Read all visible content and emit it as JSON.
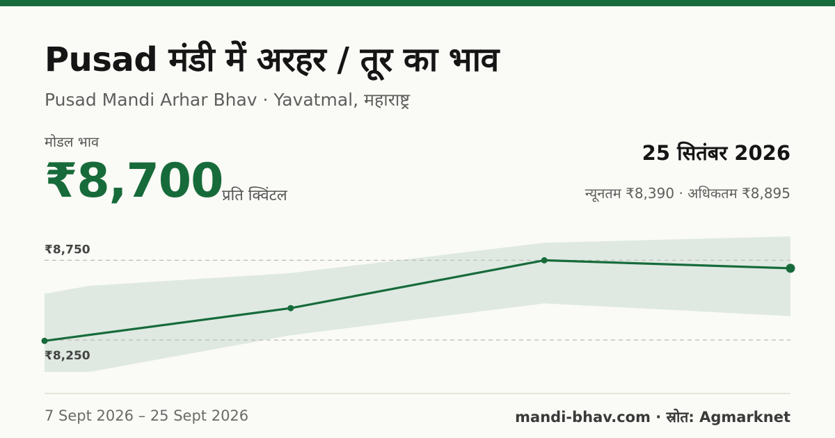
{
  "header": {
    "title": "Pusad मंडी में अरहर / तूर का भाव",
    "subtitle": "Pusad Mandi Arhar Bhav · Yavatmal, महाराष्ट्र"
  },
  "price": {
    "modal_label": "मोडल भाव",
    "modal_value": "₹8,700",
    "unit": "प्रति क्विंटल",
    "date": "25 सितंबर 2026",
    "min_label": "न्यूनतम",
    "min_value": "₹8,390",
    "separator": "·",
    "max_label": "अधिकतम",
    "max_value": "₹8,895"
  },
  "footer": {
    "date_range": "7 Sept 2026 – 25 Sept 2026",
    "source": "mandi-bhav.com · स्रोत: Agmarknet"
  },
  "colors": {
    "accent": "#176b3a",
    "band": "#dfe9e2",
    "grid": "#bdbdb6"
  },
  "chart_data": {
    "type": "line",
    "y_ticks": [
      {
        "value": 8750,
        "label": "₹8,750"
      },
      {
        "value": 8250,
        "label": "₹8,250"
      }
    ],
    "ylim": [
      8050,
      8900
    ],
    "band": {
      "x": [
        0,
        0.06,
        0.33,
        0.67,
        1
      ],
      "upper": [
        8540,
        8590,
        8670,
        8860,
        8900
      ],
      "lower": [
        8050,
        8050,
        8280,
        8480,
        8400
      ]
    },
    "series": [
      {
        "x": [
          0,
          0.33,
          0.67,
          1
        ],
        "values": [
          8245,
          8450,
          8750,
          8700
        ]
      }
    ],
    "grid": true,
    "legend": "none"
  }
}
